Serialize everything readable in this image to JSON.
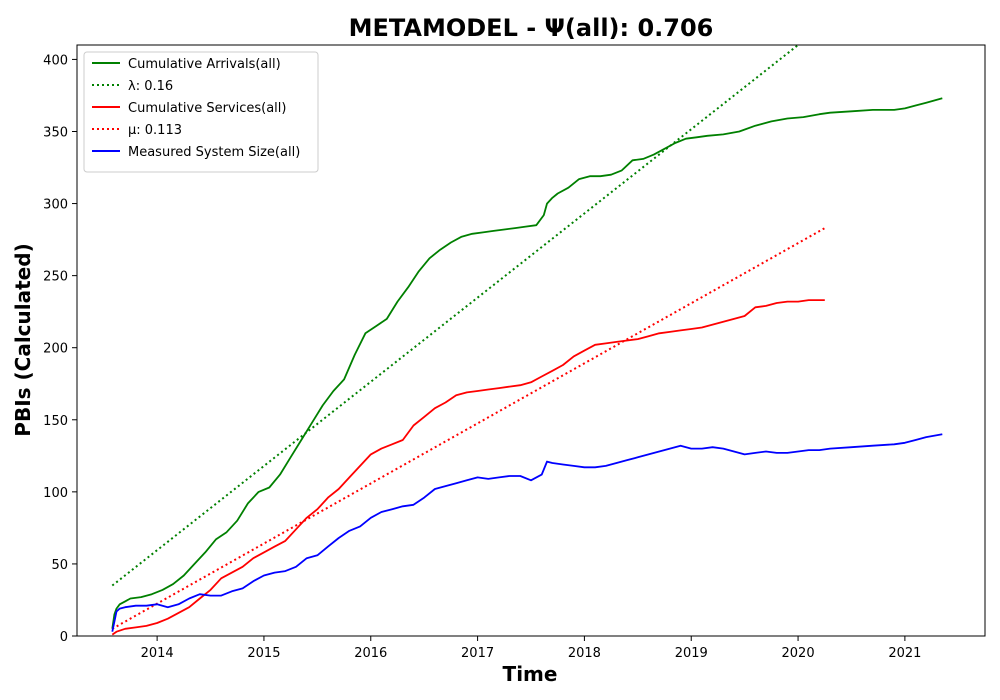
{
  "chart_data": {
    "type": "line",
    "title": "METAMODEL -  Ψ(all): 0.706",
    "xlabel": "Time",
    "ylabel": "PBIs (Calculated)",
    "xlim": [
      2013.25,
      2021.75
    ],
    "ylim": [
      0,
      410
    ],
    "x_ticks": [
      "2014",
      "2015",
      "2016",
      "2017",
      "2018",
      "2019",
      "2020",
      "2021"
    ],
    "y_ticks": [
      "0",
      "50",
      "100",
      "150",
      "200",
      "250",
      "300",
      "350",
      "400"
    ],
    "grid": false,
    "legend_position": "top-left",
    "series": [
      {
        "name": "Cumulative Arrivals(all)",
        "color": "#008000",
        "style": "solid",
        "x": [
          2013.58,
          2013.6,
          2013.62,
          2013.65,
          2013.7,
          2013.75,
          2013.85,
          2013.95,
          2014.05,
          2014.15,
          2014.25,
          2014.35,
          2014.45,
          2014.55,
          2014.65,
          2014.75,
          2014.85,
          2014.95,
          2015.05,
          2015.15,
          2015.25,
          2015.35,
          2015.45,
          2015.55,
          2015.65,
          2015.75,
          2015.85,
          2015.95,
          2016.05,
          2016.15,
          2016.25,
          2016.35,
          2016.45,
          2016.55,
          2016.65,
          2016.75,
          2016.85,
          2016.95,
          2017.05,
          2017.15,
          2017.25,
          2017.35,
          2017.45,
          2017.55,
          2017.62,
          2017.65,
          2017.7,
          2017.75,
          2017.85,
          2017.95,
          2018.05,
          2018.15,
          2018.25,
          2018.35,
          2018.45,
          2018.55,
          2018.65,
          2018.75,
          2018.85,
          2018.95,
          2019.05,
          2019.15,
          2019.3,
          2019.45,
          2019.6,
          2019.75,
          2019.9,
          2020.05,
          2020.2,
          2020.3,
          2020.5,
          2020.7,
          2020.9,
          2021.0,
          2021.1,
          2021.2,
          2021.35
        ],
        "y": [
          5,
          15,
          19,
          22,
          24,
          26,
          27,
          29,
          32,
          36,
          42,
          50,
          58,
          67,
          72,
          80,
          92,
          100,
          103,
          112,
          124,
          136,
          148,
          160,
          170,
          178,
          195,
          210,
          215,
          220,
          232,
          242,
          253,
          262,
          268,
          273,
          277,
          279,
          280,
          281,
          282,
          283,
          284,
          285,
          292,
          300,
          304,
          307,
          311,
          317,
          319,
          319,
          320,
          323,
          330,
          331,
          334,
          338,
          342,
          345,
          346,
          347,
          348,
          350,
          354,
          357,
          359,
          360,
          362,
          363,
          364,
          365,
          365,
          366,
          368,
          370,
          373
        ]
      },
      {
        "name": "λ: 0.16",
        "color": "#008000",
        "style": "dotted",
        "x": [
          2013.58,
          2020.0
        ],
        "y": [
          35,
          410
        ]
      },
      {
        "name": "Cumulative Services(all)",
        "color": "#ff0000",
        "style": "solid",
        "x": [
          2013.58,
          2013.62,
          2013.7,
          2013.8,
          2013.9,
          2014.0,
          2014.1,
          2014.2,
          2014.3,
          2014.4,
          2014.5,
          2014.6,
          2014.7,
          2014.8,
          2014.9,
          2015.0,
          2015.1,
          2015.2,
          2015.3,
          2015.4,
          2015.5,
          2015.6,
          2015.7,
          2015.8,
          2015.9,
          2016.0,
          2016.1,
          2016.2,
          2016.3,
          2016.4,
          2016.5,
          2016.6,
          2016.7,
          2016.8,
          2016.9,
          2017.0,
          2017.1,
          2017.2,
          2017.3,
          2017.4,
          2017.5,
          2017.6,
          2017.7,
          2017.8,
          2017.9,
          2018.0,
          2018.1,
          2018.2,
          2018.3,
          2018.4,
          2018.5,
          2018.6,
          2018.7,
          2018.8,
          2018.9,
          2019.0,
          2019.1,
          2019.2,
          2019.3,
          2019.4,
          2019.5,
          2019.6,
          2019.7,
          2019.8,
          2019.9,
          2020.0,
          2020.1,
          2020.25
        ],
        "y": [
          1,
          3,
          5,
          6,
          7,
          9,
          12,
          16,
          20,
          26,
          32,
          40,
          44,
          48,
          54,
          58,
          62,
          66,
          74,
          82,
          88,
          96,
          102,
          110,
          118,
          126,
          130,
          133,
          136,
          146,
          152,
          158,
          162,
          167,
          169,
          170,
          171,
          172,
          173,
          174,
          176,
          180,
          184,
          188,
          194,
          198,
          202,
          203,
          204,
          205,
          206,
          208,
          210,
          211,
          212,
          213,
          214,
          216,
          218,
          220,
          222,
          228,
          229,
          231,
          232,
          232,
          233,
          233
        ]
      },
      {
        "name": "μ: 0.113",
        "color": "#ff0000",
        "style": "dotted",
        "x": [
          2013.58,
          2020.25
        ],
        "y": [
          5,
          283
        ]
      },
      {
        "name": "Measured System Size(all)",
        "color": "#0000ff",
        "style": "solid",
        "x": [
          2013.58,
          2013.6,
          2013.62,
          2013.65,
          2013.7,
          2013.8,
          2013.9,
          2014.0,
          2014.1,
          2014.2,
          2014.3,
          2014.4,
          2014.5,
          2014.6,
          2014.7,
          2014.8,
          2014.9,
          2015.0,
          2015.1,
          2015.2,
          2015.3,
          2015.4,
          2015.5,
          2015.6,
          2015.7,
          2015.8,
          2015.9,
          2016.0,
          2016.1,
          2016.2,
          2016.3,
          2016.4,
          2016.5,
          2016.6,
          2016.7,
          2016.8,
          2016.9,
          2017.0,
          2017.1,
          2017.2,
          2017.3,
          2017.4,
          2017.5,
          2017.6,
          2017.65,
          2017.7,
          2017.8,
          2017.9,
          2018.0,
          2018.1,
          2018.2,
          2018.3,
          2018.4,
          2018.5,
          2018.6,
          2018.7,
          2018.8,
          2018.9,
          2019.0,
          2019.1,
          2019.2,
          2019.3,
          2019.4,
          2019.5,
          2019.6,
          2019.7,
          2019.8,
          2019.9,
          2020.0,
          2020.1,
          2020.2,
          2020.3,
          2020.5,
          2020.7,
          2020.9,
          2021.0,
          2021.1,
          2021.2,
          2021.35
        ],
        "y": [
          3,
          10,
          17,
          19,
          20,
          21,
          21,
          22,
          20,
          22,
          26,
          29,
          28,
          28,
          31,
          33,
          38,
          42,
          44,
          45,
          48,
          54,
          56,
          62,
          68,
          73,
          76,
          82,
          86,
          88,
          90,
          91,
          96,
          102,
          104,
          106,
          108,
          110,
          109,
          110,
          111,
          111,
          108,
          112,
          121,
          120,
          119,
          118,
          117,
          117,
          118,
          120,
          122,
          124,
          126,
          128,
          130,
          132,
          130,
          130,
          131,
          130,
          128,
          126,
          127,
          128,
          127,
          127,
          128,
          129,
          129,
          130,
          131,
          132,
          133,
          134,
          136,
          138,
          140
        ]
      }
    ]
  }
}
